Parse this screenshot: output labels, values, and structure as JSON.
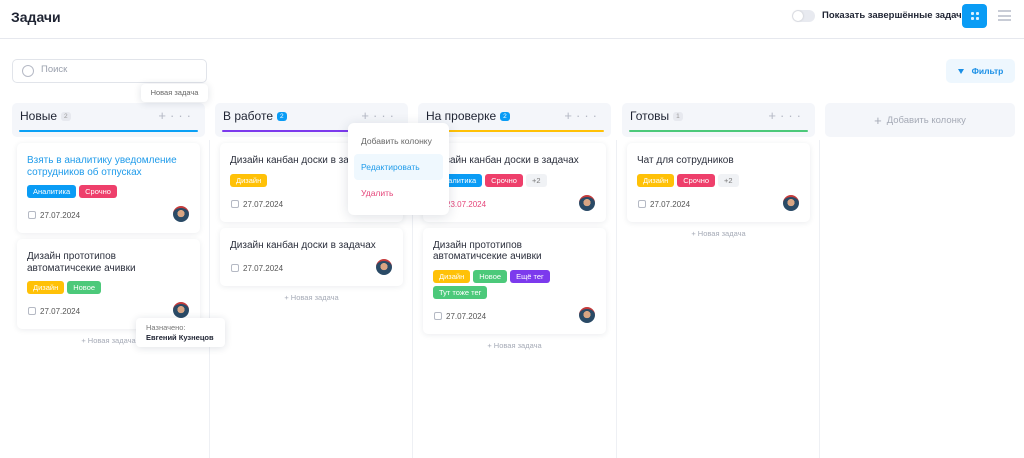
{
  "header": {
    "title": "Задачи",
    "toggle_label": "Показать завершённые задачи",
    "toggle_on": false,
    "view_icon": "grid-icon",
    "menu_icon": "hamburger-icon"
  },
  "toolbar": {
    "search_placeholder": "Поиск",
    "search_value": "",
    "filter_label": "Фильтр"
  },
  "colors": {
    "accent": "#0a9cf5",
    "danger": "#e5457a"
  },
  "columns": [
    {
      "name": "Новые",
      "count": "2",
      "count_style": "gray",
      "color": "#0aa0f5",
      "cards": [
        {
          "title": "Взять в аналитику уведомление сотрудников об отпусках",
          "link": true,
          "tags": [
            {
              "label": "Аналитика",
              "color": "#0a9cf5"
            },
            {
              "label": "Срочно",
              "color": "#ee3f6b"
            }
          ],
          "date": "27.07.2024"
        },
        {
          "title": "Дизайн прототипов автоматичсекие ачивки",
          "tags": [
            {
              "label": "Дизайн",
              "color": "#ffc107"
            },
            {
              "label": "Новое",
              "color": "#4cc97a"
            }
          ],
          "date": "27.07.2024"
        }
      ]
    },
    {
      "name": "В работе",
      "count": "2",
      "count_style": "blue",
      "color": "#7c3aed",
      "cards": [
        {
          "title": "Дизайн канбан доски в задачах",
          "tags": [
            {
              "label": "Дизайн",
              "color": "#ffc107"
            }
          ],
          "date": "27.07.2024"
        },
        {
          "title": "Дизайн канбан доски в задачах",
          "tags": [],
          "date": "27.07.2024"
        }
      ]
    },
    {
      "name": "На проверке",
      "count": "2",
      "count_style": "blue",
      "color": "#ffc107",
      "cards": [
        {
          "title": "Дизайн канбан доски в задачах",
          "tags": [
            {
              "label": "Аналитика",
              "color": "#0a9cf5"
            },
            {
              "label": "Срочно",
              "color": "#ee3f6b"
            },
            {
              "label": "+2",
              "more": true
            }
          ],
          "date": "23.07.2024",
          "overdue": true
        },
        {
          "title": "Дизайн прототипов автоматичсекие ачивки",
          "tags": [
            {
              "label": "Дизайн",
              "color": "#ffc107"
            },
            {
              "label": "Новое",
              "color": "#4cc97a"
            },
            {
              "label": "Ещё тег",
              "color": "#7c3aed"
            },
            {
              "label": "Тут тоже тег",
              "color": "#4cc97a"
            }
          ],
          "date": "27.07.2024"
        }
      ]
    },
    {
      "name": "Готовы",
      "count": "1",
      "count_style": "gray",
      "color": "#4cc97a",
      "cards": [
        {
          "title": "Чат для сотрудников",
          "tags": [
            {
              "label": "Дизайн",
              "color": "#ffc107"
            },
            {
              "label": "Срочно",
              "color": "#ee3f6b"
            },
            {
              "label": "+2",
              "more": true
            }
          ],
          "date": "27.07.2024"
        }
      ]
    }
  ],
  "new_task_label": "Новая задача",
  "add_column_label": "Добавить колонку",
  "context_menu": {
    "items": [
      "Добавить колонку",
      "Редактировать",
      "Удалить"
    ]
  },
  "tooltips": {
    "new_task": "Новая задача",
    "assigned_label": "Назначено:",
    "assigned_name": "Евгений Кузнецов"
  }
}
